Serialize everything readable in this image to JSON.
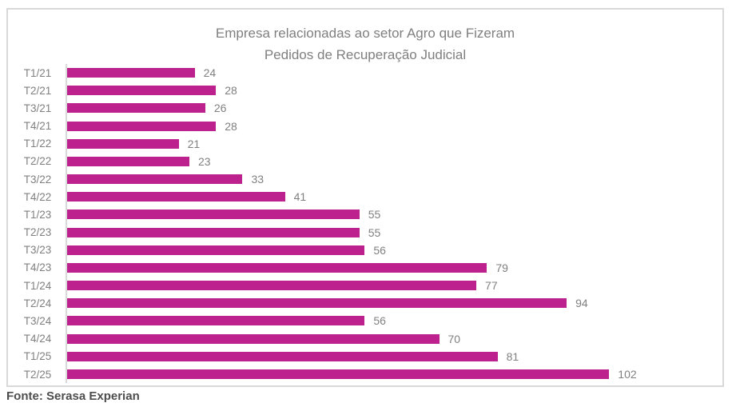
{
  "chart_data": {
    "type": "bar",
    "orientation": "horizontal",
    "title": "Empresa relacionadas ao setor Agro que Fizeram Pedidos de Recuperação Judicial",
    "title_lines": [
      "Empresa relacionadas ao setor Agro que Fizeram",
      "Pedidos de Recuperação Judicial"
    ],
    "categories": [
      "T1/21",
      "T2/21",
      "T3/21",
      "T4/21",
      "T1/22",
      "T2/22",
      "T3/22",
      "T4/22",
      "T1/23",
      "T2/23",
      "T3/23",
      "T4/23",
      "T1/24",
      "T2/24",
      "T3/24",
      "T4/24",
      "T1/25",
      "T2/25"
    ],
    "values": [
      24,
      28,
      26,
      28,
      21,
      23,
      33,
      41,
      55,
      55,
      56,
      79,
      77,
      94,
      56,
      70,
      81,
      102
    ],
    "xlabel": "",
    "ylabel": "",
    "xlim": [
      0,
      120
    ],
    "grid": false,
    "legend": "none",
    "data_labels": true,
    "colors": {
      "bar": "#BD218D",
      "title_text": "#7F7F7F",
      "category_text": "#808080",
      "value_text": "#808080",
      "axis_line": "#D9D9D9",
      "chart_border": "#D9D9D9",
      "source_text": "#4D4D4D"
    }
  },
  "source": {
    "text": "Fonte: Serasa Experian"
  }
}
